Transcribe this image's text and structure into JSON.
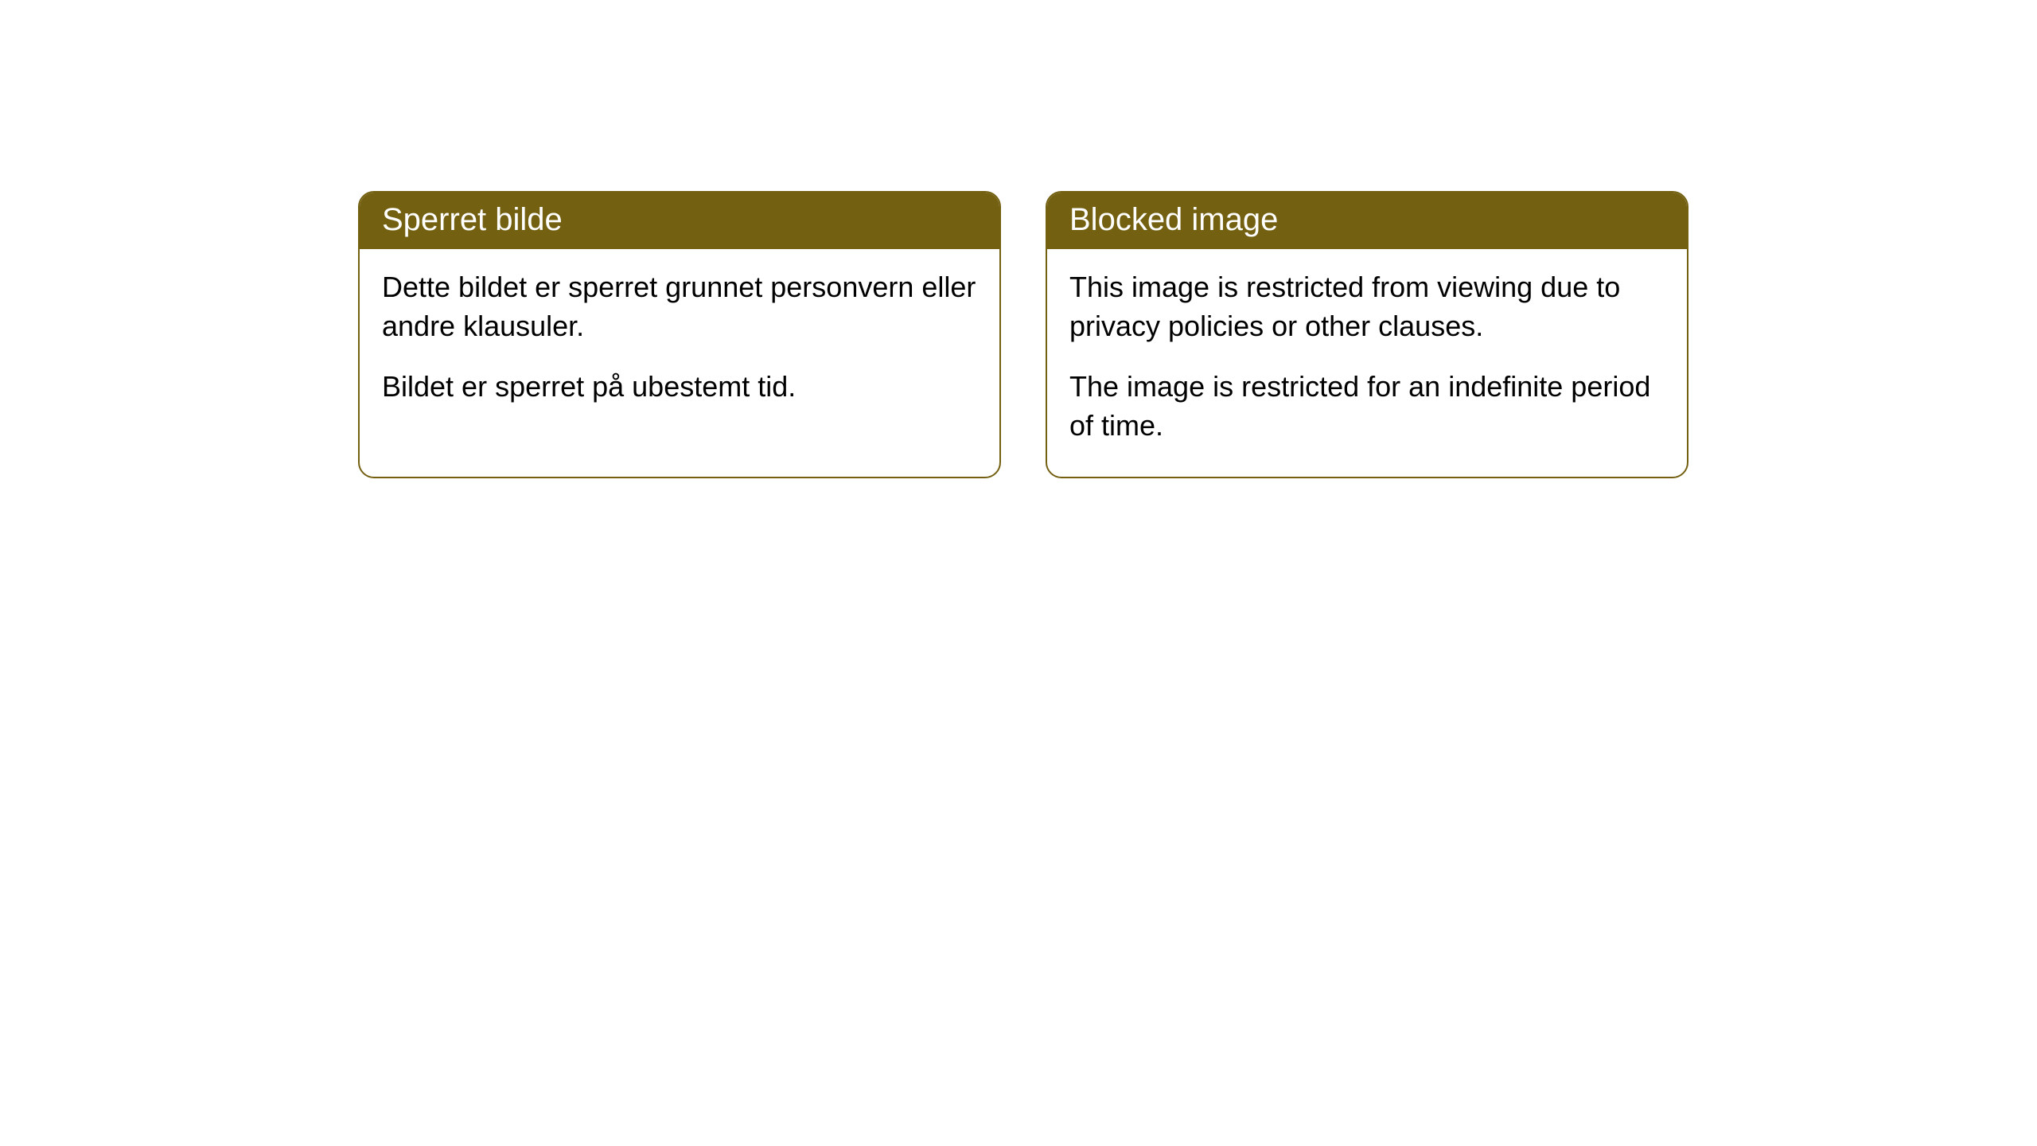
{
  "cards": [
    {
      "title": "Sperret bilde",
      "paragraph1": "Dette bildet er sperret grunnet personvern eller andre klausuler.",
      "paragraph2": "Bildet er sperret på ubestemt tid."
    },
    {
      "title": "Blocked image",
      "paragraph1": "This image is restricted from viewing due to privacy policies or other clauses.",
      "paragraph2": "The image is restricted for an indefinite period of time."
    }
  ],
  "style": {
    "header_bg_color": "#736011",
    "header_text_color": "#ffffff",
    "border_color": "#736011",
    "body_text_color": "#000000",
    "background_color": "#ffffff",
    "border_radius": 20,
    "title_fontsize": 40,
    "body_fontsize": 36
  }
}
